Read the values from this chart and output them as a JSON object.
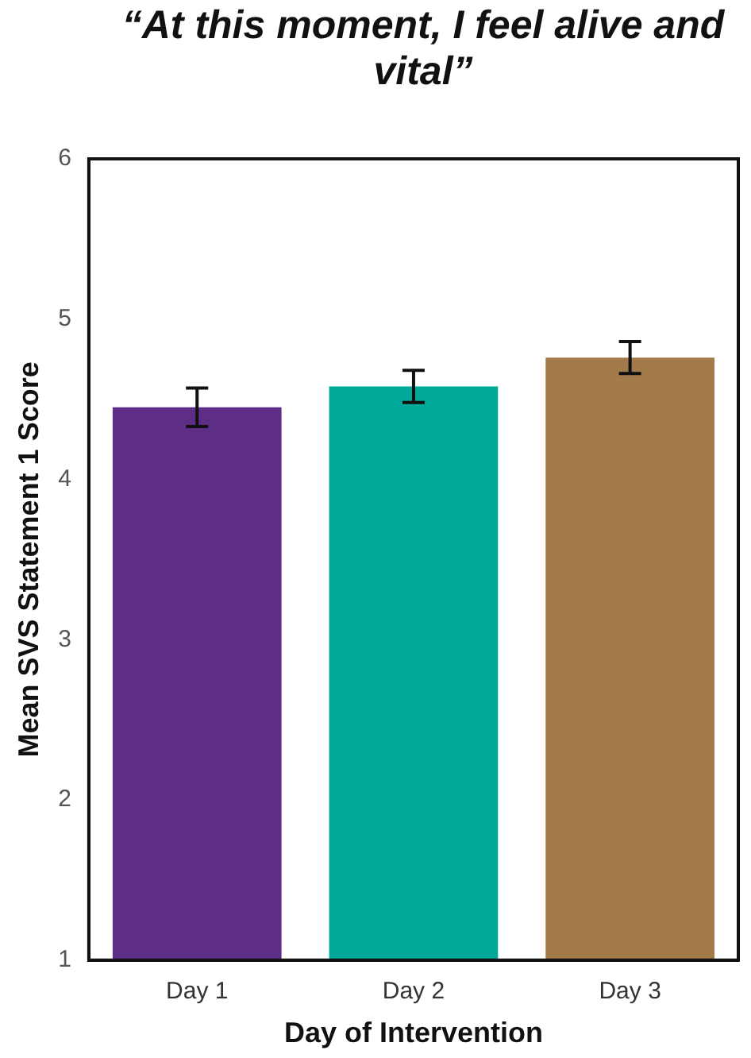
{
  "chart_data": {
    "type": "bar",
    "title": "“At this moment, I feel alive and vital”",
    "xlabel": "Day of Intervention",
    "ylabel": "Mean SVS Statement 1 Score",
    "categories": [
      "Day 1",
      "Day 2",
      "Day 3"
    ],
    "values": [
      4.45,
      4.58,
      4.76
    ],
    "errors": [
      0.12,
      0.1,
      0.1
    ],
    "colors": [
      "#5e2d86",
      "#00a99a",
      "#a37b4a"
    ],
    "ylim": [
      1,
      6
    ],
    "yticks": [
      1,
      2,
      3,
      4,
      5,
      6
    ],
    "grid": false,
    "legend": false
  }
}
